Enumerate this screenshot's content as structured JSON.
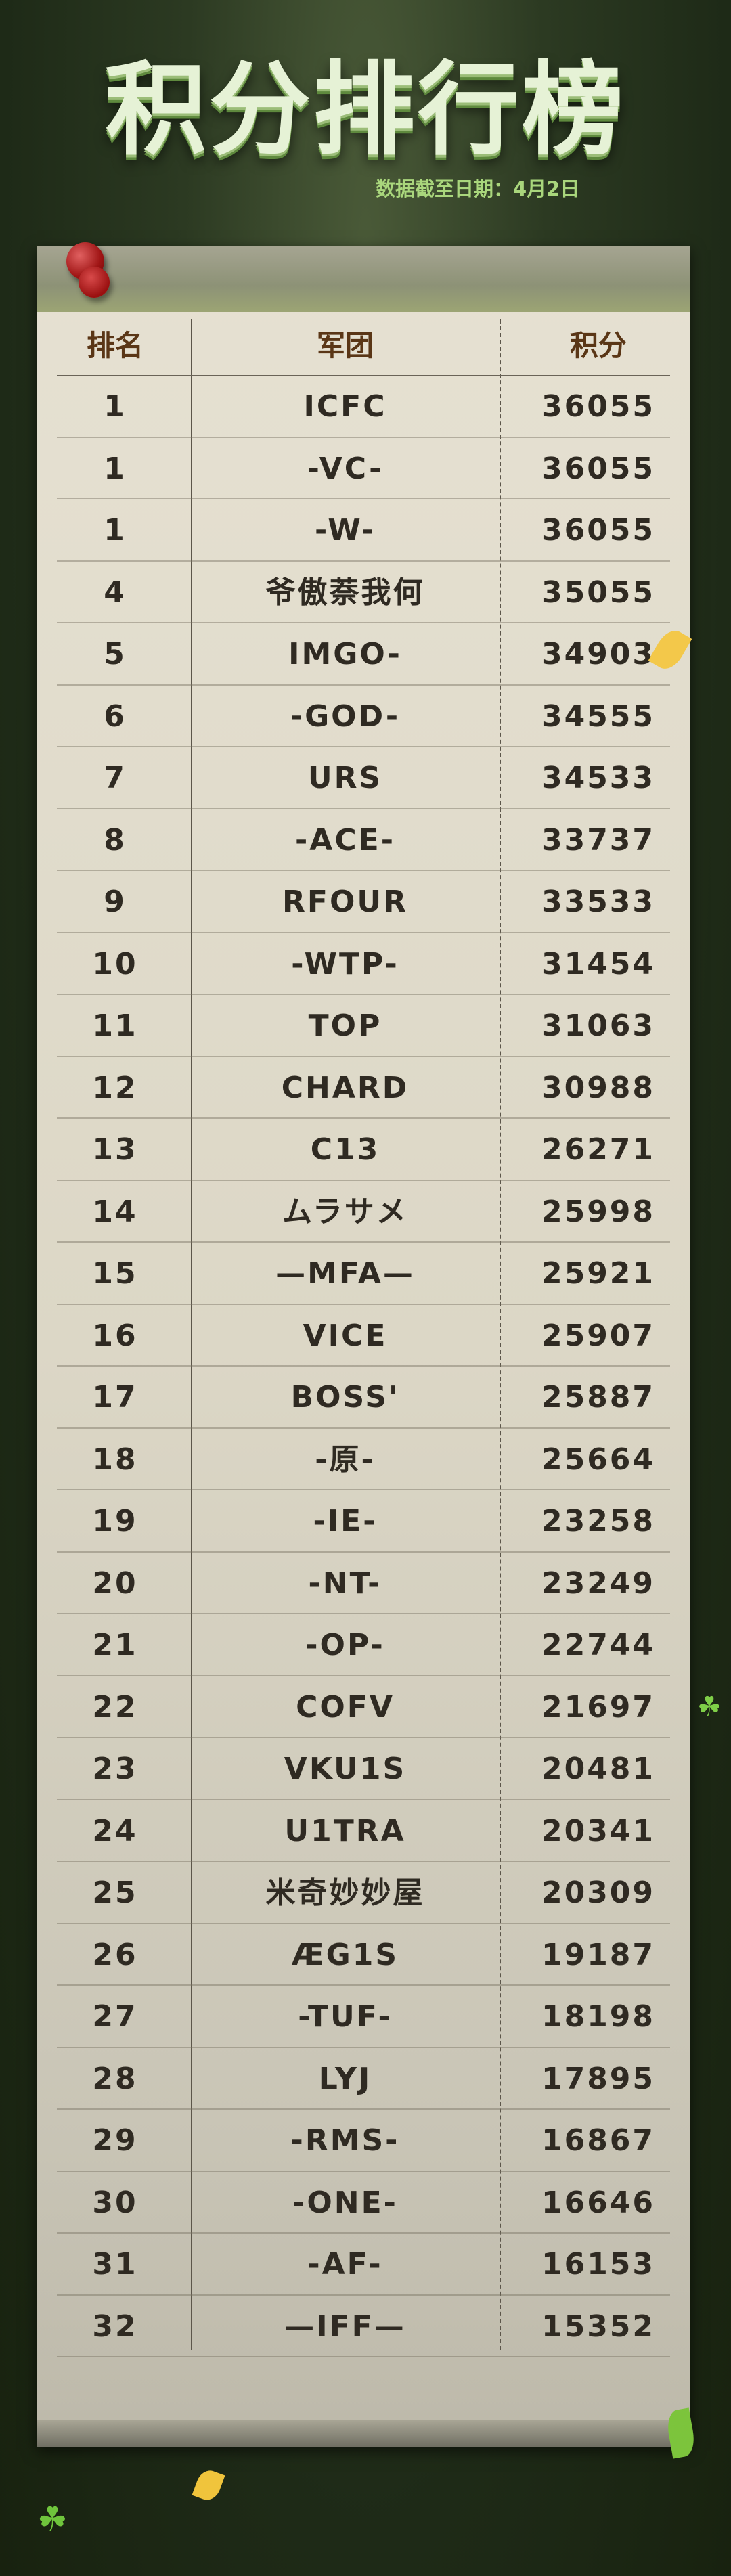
{
  "title": "积分排行榜",
  "subtitle": "数据截至日期：4月2日",
  "table": {
    "headers": [
      "排名",
      "军团",
      "积分"
    ],
    "rows": [
      [
        "1",
        "ICFC",
        "36055"
      ],
      [
        "1",
        "-VC-",
        "36055"
      ],
      [
        "1",
        "-W-",
        "36055"
      ],
      [
        "4",
        "爷傲萘我何",
        "35055"
      ],
      [
        "5",
        "IMGO-",
        "34903"
      ],
      [
        "6",
        "-GOD-",
        "34555"
      ],
      [
        "7",
        "URS",
        "34533"
      ],
      [
        "8",
        "-ACE-",
        "33737"
      ],
      [
        "9",
        "RFOUR",
        "33533"
      ],
      [
        "10",
        "-WTP-",
        "31454"
      ],
      [
        "11",
        "TOP",
        "31063"
      ],
      [
        "12",
        "CHARD",
        "30988"
      ],
      [
        "13",
        "C13",
        "26271"
      ],
      [
        "14",
        "ムラサメ",
        "25998"
      ],
      [
        "15",
        "—MFA—",
        "25921"
      ],
      [
        "16",
        "VICE",
        "25907"
      ],
      [
        "17",
        "BOSS'",
        "25887"
      ],
      [
        "18",
        "-原-",
        "25664"
      ],
      [
        "19",
        "-IE-",
        "23258"
      ],
      [
        "20",
        "-NT-",
        "23249"
      ],
      [
        "21",
        "-OP-",
        "22744"
      ],
      [
        "22",
        "COFV",
        "21697"
      ],
      [
        "23",
        "VKU1S",
        "20481"
      ],
      [
        "24",
        "U1TRA",
        "20341"
      ],
      [
        "25",
        "米奇妙妙屋",
        "20309"
      ],
      [
        "26",
        "ÆG1S",
        "19187"
      ],
      [
        "27",
        "-TUF-",
        "18198"
      ],
      [
        "28",
        "LYJ",
        "17895"
      ],
      [
        "29",
        "-RMS-",
        "16867"
      ],
      [
        "30",
        "-ONE-",
        "16646"
      ],
      [
        "31",
        "-AF-",
        "16153"
      ],
      [
        "32",
        "—IFF—",
        "15352"
      ]
    ]
  },
  "colors": {
    "header_text": "#5a3616",
    "cell_text": "#2f2a22",
    "title": "#e6f2d6",
    "subtitle": "#a9d67c",
    "pin": "#b01818"
  },
  "icons": {
    "pin": "push-pin-icon",
    "clover": "four-leaf-clover-icon"
  }
}
